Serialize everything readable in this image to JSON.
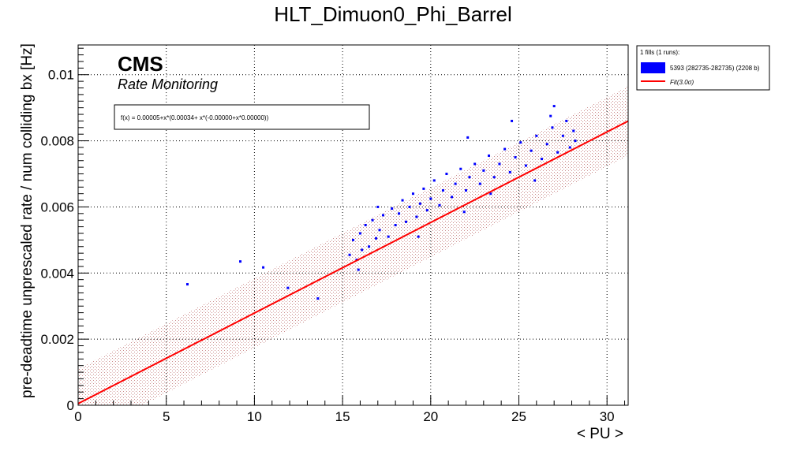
{
  "chart_data": {
    "type": "scatter",
    "title": "HLT_Dimuon0_Phi_Barrel",
    "xlabel": "< PU >",
    "ylabel": "pre-deadtime unprescaled rate / num colliding bx [Hz]",
    "xlim": [
      0,
      31.2
    ],
    "ylim": [
      0,
      0.0109
    ],
    "x_ticks": [
      0,
      5,
      10,
      15,
      20,
      25,
      30
    ],
    "x_tick_labels": [
      "0",
      "5",
      "10",
      "15",
      "20",
      "25",
      "30"
    ],
    "y_ticks": [
      0,
      0.002,
      0.004,
      0.006,
      0.008,
      0.01
    ],
    "y_tick_labels": [
      "0",
      "0.002",
      "0.004",
      "0.006",
      "0.008",
      "0.01"
    ],
    "grid": true,
    "experiment_label": "CMS",
    "experiment_sublabel": "Rate Monitoring",
    "fit_formula": "f(x) = 0.00005+x*(0.00034+ x*(-0.00000+x*0.00000))",
    "fit": {
      "intercept": 5e-05,
      "slope": 0.000274,
      "band_halfwidth": 0.00105
    },
    "legend": {
      "position": "top-right",
      "header": "1 fills (1 runs):",
      "entries": [
        {
          "label": "5393 (282735-282735) (2208 b)",
          "color": "#0000ff",
          "style": "box"
        },
        {
          "label": "Fit(3.0σ)",
          "color": "#ff0000",
          "style": "line"
        }
      ]
    },
    "series": [
      {
        "name": "5393 (282735-282735) (2208 b)",
        "color": "#0000ff",
        "points": [
          [
            6.2,
            0.00366
          ],
          [
            9.2,
            0.00435
          ],
          [
            10.5,
            0.00417
          ],
          [
            11.9,
            0.00355
          ],
          [
            13.6,
            0.00323
          ],
          [
            15.4,
            0.00455
          ],
          [
            15.6,
            0.005
          ],
          [
            15.8,
            0.0044
          ],
          [
            16.0,
            0.0052
          ],
          [
            16.1,
            0.0047
          ],
          [
            16.3,
            0.00545
          ],
          [
            16.5,
            0.0048
          ],
          [
            16.7,
            0.0056
          ],
          [
            16.9,
            0.00505
          ],
          [
            17.1,
            0.0053
          ],
          [
            17.3,
            0.00575
          ],
          [
            17.6,
            0.0051
          ],
          [
            17.8,
            0.00595
          ],
          [
            18.0,
            0.00545
          ],
          [
            18.2,
            0.0058
          ],
          [
            18.4,
            0.0062
          ],
          [
            18.6,
            0.00555
          ],
          [
            18.8,
            0.006
          ],
          [
            19.0,
            0.0064
          ],
          [
            19.2,
            0.0057
          ],
          [
            19.4,
            0.0061
          ],
          [
            19.6,
            0.00655
          ],
          [
            19.8,
            0.0059
          ],
          [
            20.0,
            0.00625
          ],
          [
            20.2,
            0.0068
          ],
          [
            20.5,
            0.00605
          ],
          [
            20.7,
            0.0065
          ],
          [
            20.9,
            0.007
          ],
          [
            21.2,
            0.0063
          ],
          [
            21.4,
            0.0067
          ],
          [
            21.7,
            0.00715
          ],
          [
            22.0,
            0.0065
          ],
          [
            22.2,
            0.0069
          ],
          [
            22.5,
            0.0073
          ],
          [
            22.8,
            0.0067
          ],
          [
            23.0,
            0.0071
          ],
          [
            23.3,
            0.00755
          ],
          [
            23.6,
            0.0069
          ],
          [
            23.9,
            0.0073
          ],
          [
            24.2,
            0.00775
          ],
          [
            24.5,
            0.00705
          ],
          [
            24.8,
            0.0075
          ],
          [
            25.1,
            0.00795
          ],
          [
            25.4,
            0.00725
          ],
          [
            25.7,
            0.0077
          ],
          [
            26.0,
            0.00815
          ],
          [
            26.3,
            0.00745
          ],
          [
            26.6,
            0.0079
          ],
          [
            26.9,
            0.0084
          ],
          [
            27.0,
            0.00905
          ],
          [
            27.2,
            0.00765
          ],
          [
            27.5,
            0.00815
          ],
          [
            27.7,
            0.0086
          ],
          [
            27.9,
            0.0078
          ],
          [
            28.1,
            0.0083
          ],
          [
            28.2,
            0.008
          ],
          [
            15.9,
            0.0041
          ],
          [
            22.1,
            0.0081
          ],
          [
            24.6,
            0.0086
          ],
          [
            26.8,
            0.00875
          ],
          [
            19.3,
            0.0051
          ],
          [
            17.0,
            0.006
          ],
          [
            23.4,
            0.0064
          ],
          [
            25.9,
            0.0068
          ],
          [
            21.9,
            0.00585
          ]
        ]
      }
    ]
  }
}
